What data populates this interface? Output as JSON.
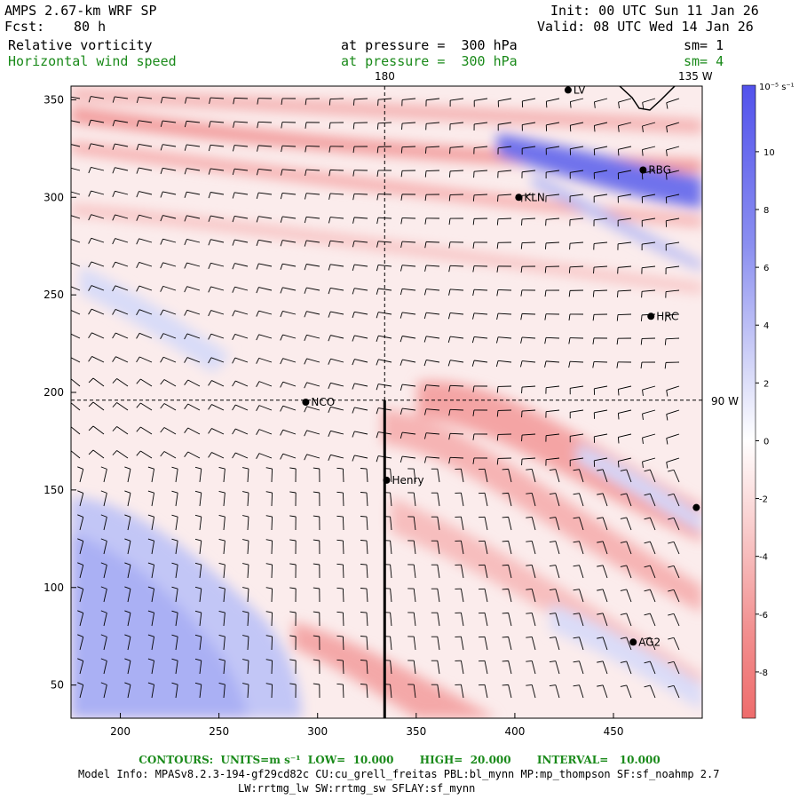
{
  "header": {
    "model_title": "AMPS 2.67-km WRF SP",
    "forecast_label": "Fcst:",
    "forecast_hours": "80 h",
    "init_line": "Init: 00 UTC Sun 11 Jan 26",
    "valid_line": "Valid: 08 UTC Wed 14 Jan 26",
    "field1_name": "Relative vorticity",
    "field1_level": "at pressure =  300 hPa",
    "field1_smooth": "sm= 1",
    "field2_name": "Horizontal wind speed",
    "field2_level": "at pressure =  300 hPa",
    "field2_smooth": "sm= 4"
  },
  "map": {
    "x_ticks": [
      "200",
      "250",
      "300",
      "350",
      "400",
      "450"
    ],
    "y_ticks": [
      "350",
      "300",
      "250",
      "200",
      "150",
      "100",
      "50"
    ],
    "x_tick_values": [
      200,
      250,
      300,
      350,
      400,
      450
    ],
    "y_tick_values": [
      350,
      300,
      250,
      200,
      150,
      100,
      50
    ],
    "x_range": [
      175,
      495
    ],
    "y_range": [
      33,
      357
    ],
    "lon_label_180": "180",
    "lon_label_135w": "135 W",
    "lon_label_90w": "90 W",
    "meridian_180_x": 334,
    "lat_line_y": 196,
    "stations": [
      {
        "label": "LV",
        "x": 427,
        "y": 355
      },
      {
        "label": "RBG",
        "x": 465,
        "y": 314
      },
      {
        "label": "KLN",
        "x": 402,
        "y": 300
      },
      {
        "label": "HRC",
        "x": 469,
        "y": 239
      },
      {
        "label": "NCO",
        "x": 294,
        "y": 195
      },
      {
        "label": "Henry",
        "x": 335,
        "y": 155
      },
      {
        "label": "",
        "x": 492,
        "y": 141
      },
      {
        "label": "AG2",
        "x": 460,
        "y": 72
      }
    ],
    "colors": {
      "positive": "#4a4ae8",
      "negative": "#f07070",
      "neutral": "#ffffff"
    }
  },
  "colorbar": {
    "units": "10⁻⁵ s⁻¹",
    "ticks": [
      "10",
      "8",
      "6",
      "4",
      "2",
      "0",
      "-2",
      "-4",
      "-6",
      "-8"
    ],
    "tick_values": [
      10,
      8,
      6,
      4,
      2,
      0,
      -2,
      -4,
      -6,
      -8
    ],
    "range": [
      -9.6,
      12.3
    ]
  },
  "footer": {
    "contours_line": "CONTOURS:  UNITS=m s⁻¹  LOW=  10.000       HIGH=  20.000       INTERVAL=   10.000",
    "model_info_line": "Model Info: MPASv8.2.3-194-gf29cd82c CU:cu_grell_freitas PBL:bl_mynn MP:mp_thompson SF:sf_noahmp 2.7",
    "physics_line": "LW:rrtmg_lw SW:rrtmg_sw SFLAY:sf_mynn"
  }
}
